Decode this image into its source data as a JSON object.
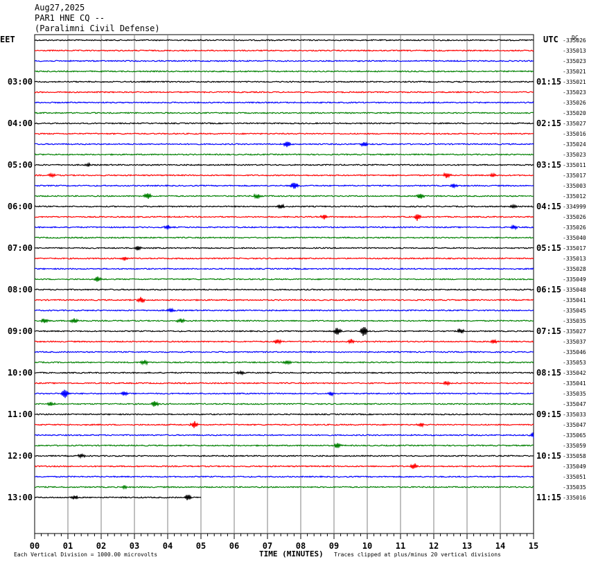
{
  "header": {
    "date": "Aug27,2025",
    "station": "PAR1 HNE CQ --",
    "site": "(Paralimni Civil Defense)"
  },
  "left_tz": "EET",
  "right_tz": "UTC",
  "corner_mark": "DC",
  "footer": {
    "scale_note": "Each Vertical Division = 1000.00 microvolts",
    "xlabel": "TIME (MINUTES)",
    "clip_note": "Traces clipped at plus/minus 20 vertical divisions"
  },
  "chart_data": {
    "type": "line",
    "title": "PAR1 HNE CQ --",
    "xlabel": "TIME (MINUTES)",
    "xlim": [
      0,
      15
    ],
    "x_ticks": [
      "00",
      "01",
      "02",
      "03",
      "04",
      "05",
      "06",
      "07",
      "08",
      "09",
      "10",
      "11",
      "12",
      "13",
      "14",
      "15"
    ],
    "trace_colors": [
      "#000000",
      "#ff0000",
      "#0000ff",
      "#008000"
    ],
    "left_hour_labels": [
      "03:00",
      "04:00",
      "05:00",
      "06:00",
      "07:00",
      "08:00",
      "09:00",
      "10:00",
      "11:00",
      "12:00",
      "13:00"
    ],
    "right_hour_labels": [
      "01:15",
      "02:15",
      "03:15",
      "04:15",
      "05:15",
      "06:15",
      "07:15",
      "08:15",
      "09:15",
      "10:15",
      "11:15"
    ],
    "trace_offsets": [
      "-335026",
      "-335013",
      "-335023",
      "-335021",
      "-335021",
      "-335023",
      "-335026",
      "-335020",
      "-335027",
      "-335016",
      "-335024",
      "-335023",
      "-335011",
      "-335017",
      "-335003",
      "-335012",
      "-334999",
      "-335026",
      "-335026",
      "-335040",
      "-335017",
      "-335013",
      "-335028",
      "-335049",
      "-335048",
      "-335041",
      "-335045",
      "-335035",
      "-335027",
      "-335037",
      "-335046",
      "-335053",
      "-335042",
      "-335041",
      "-335035",
      "-335047",
      "-335033",
      "-335047",
      "-335065",
      "-335059",
      "-335058",
      "-335049",
      "-335051",
      "-335035",
      "-335016"
    ],
    "last_trace_end_minute": 5.0,
    "events": [
      {
        "row": 10,
        "minute": 7.6,
        "amp": 5
      },
      {
        "row": 10,
        "minute": 9.9,
        "amp": 4
      },
      {
        "row": 12,
        "minute": 1.6,
        "amp": 3
      },
      {
        "row": 13,
        "minute": 0.5,
        "amp": 3
      },
      {
        "row": 13,
        "minute": 12.4,
        "amp": 5
      },
      {
        "row": 13,
        "minute": 13.8,
        "amp": 3
      },
      {
        "row": 14,
        "minute": 7.8,
        "amp": 6
      },
      {
        "row": 14,
        "minute": 12.6,
        "amp": 3
      },
      {
        "row": 15,
        "minute": 3.4,
        "amp": 5
      },
      {
        "row": 15,
        "minute": 6.7,
        "amp": 4
      },
      {
        "row": 15,
        "minute": 11.6,
        "amp": 5
      },
      {
        "row": 16,
        "minute": 7.4,
        "amp": 4
      },
      {
        "row": 16,
        "minute": 14.4,
        "amp": 3
      },
      {
        "row": 17,
        "minute": 8.7,
        "amp": 4
      },
      {
        "row": 17,
        "minute": 11.5,
        "amp": 5
      },
      {
        "row": 18,
        "minute": 4.0,
        "amp": 3
      },
      {
        "row": 18,
        "minute": 14.4,
        "amp": 4
      },
      {
        "row": 20,
        "minute": 3.1,
        "amp": 3
      },
      {
        "row": 21,
        "minute": 2.7,
        "amp": 3
      },
      {
        "row": 23,
        "minute": 1.9,
        "amp": 4
      },
      {
        "row": 25,
        "minute": 3.2,
        "amp": 5
      },
      {
        "row": 26,
        "minute": 4.1,
        "amp": 3
      },
      {
        "row": 27,
        "minute": 0.3,
        "amp": 4
      },
      {
        "row": 27,
        "minute": 1.2,
        "amp": 4
      },
      {
        "row": 27,
        "minute": 4.4,
        "amp": 4
      },
      {
        "row": 28,
        "minute": 9.1,
        "amp": 6
      },
      {
        "row": 28,
        "minute": 9.9,
        "amp": 8
      },
      {
        "row": 28,
        "minute": 12.8,
        "amp": 4
      },
      {
        "row": 29,
        "minute": 7.3,
        "amp": 4
      },
      {
        "row": 29,
        "minute": 9.5,
        "amp": 4
      },
      {
        "row": 29,
        "minute": 13.8,
        "amp": 3
      },
      {
        "row": 31,
        "minute": 3.3,
        "amp": 4
      },
      {
        "row": 31,
        "minute": 7.6,
        "amp": 3
      },
      {
        "row": 32,
        "minute": 6.2,
        "amp": 3
      },
      {
        "row": 33,
        "minute": 12.4,
        "amp": 3
      },
      {
        "row": 34,
        "minute": 0.9,
        "amp": 8
      },
      {
        "row": 34,
        "minute": 2.7,
        "amp": 4
      },
      {
        "row": 34,
        "minute": 8.9,
        "amp": 3
      },
      {
        "row": 35,
        "minute": 0.5,
        "amp": 3
      },
      {
        "row": 35,
        "minute": 3.6,
        "amp": 5
      },
      {
        "row": 37,
        "minute": 4.8,
        "amp": 5
      },
      {
        "row": 37,
        "minute": 11.6,
        "amp": 3
      },
      {
        "row": 38,
        "minute": 15.0,
        "amp": 4
      },
      {
        "row": 39,
        "minute": 9.1,
        "amp": 5
      },
      {
        "row": 40,
        "minute": 1.4,
        "amp": 3
      },
      {
        "row": 41,
        "minute": 11.4,
        "amp": 5
      },
      {
        "row": 43,
        "minute": 2.7,
        "amp": 3
      },
      {
        "row": 44,
        "minute": 1.2,
        "amp": 4
      },
      {
        "row": 44,
        "minute": 4.6,
        "amp": 5
      }
    ]
  }
}
